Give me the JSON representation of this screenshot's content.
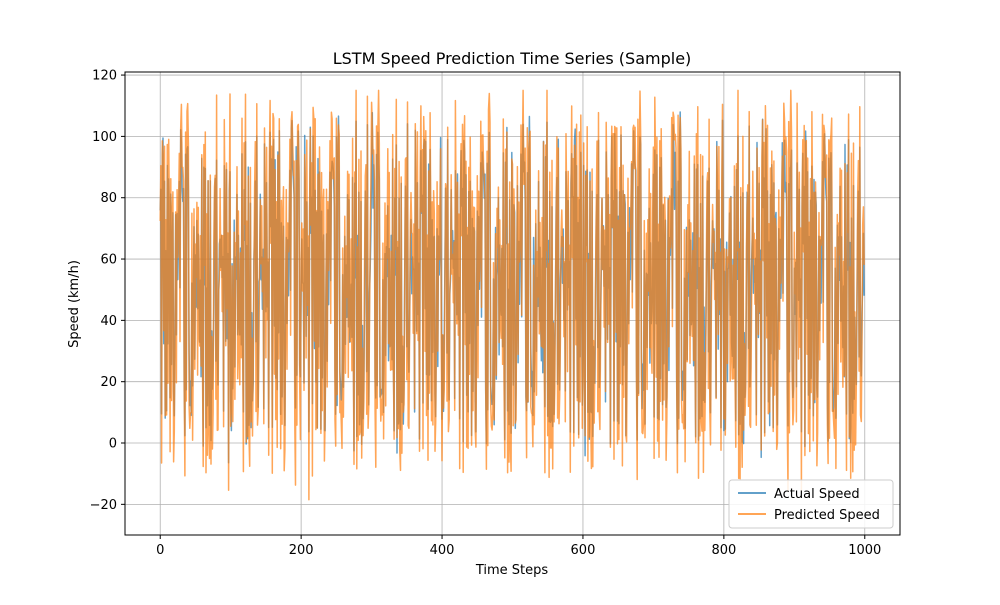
{
  "chart_data": {
    "type": "line",
    "title": "LSTM Speed Prediction Time Series (Sample)",
    "xlabel": "Time Steps",
    "ylabel": "Speed (km/h)",
    "xlim": [
      -50,
      1050
    ],
    "ylim": [
      -30,
      121
    ],
    "x_ticks": [
      0,
      200,
      400,
      600,
      800,
      1000
    ],
    "y_ticks": [
      -20,
      0,
      20,
      40,
      60,
      80,
      100,
      120
    ],
    "grid": true,
    "legend_position": "bottom-right",
    "series": [
      {
        "name": "Actual Speed",
        "color": "#1f77b4",
        "opacity": 0.7,
        "points": 1000,
        "values": [
          72,
          18,
          55,
          95,
          8,
          78,
          30,
          88,
          12,
          65,
          99,
          40,
          22,
          91,
          5,
          60,
          48,
          84,
          15,
          73,
          33,
          97,
          10,
          57,
          86,
          26,
          69,
          3,
          94,
          44,
          18,
          80,
          52,
          9,
          88,
          36,
          64,
          95,
          20,
          76,
          12,
          58,
          90,
          28,
          70,
          6,
          83,
          46,
          98,
          14,
          62,
          38,
          92,
          24,
          75,
          4,
          67,
          50,
          85,
          17,
          96,
          31,
          59,
          11,
          79,
          43,
          93,
          21,
          68,
          7,
          87,
          35,
          61,
          99,
          16,
          54,
          82,
          27,
          72,
          2,
          89,
          47,
          66,
          13,
          94,
          39,
          77,
          23,
          56,
          91,
          8,
          63,
          34,
          97,
          19,
          74,
          45,
          86,
          10,
          60
        ]
      },
      {
        "name": "Predicted Speed",
        "color": "#ff7f0e",
        "opacity": 0.7,
        "points": 1000,
        "values": [
          68,
          10,
          62,
          104,
          -2,
          85,
          24,
          96,
          4,
          70,
          107,
          34,
          14,
          98,
          -6,
          66,
          42,
          92,
          6,
          80,
          26,
          104,
          0,
          63,
          94,
          18,
          76,
          -4,
          101,
          38,
          10,
          88,
          58,
          -1,
          96,
          30,
          71,
          103,
          12,
          84,
          3,
          65,
          98,
          20,
          78,
          -8,
          91,
          40,
          110,
          5,
          69,
          32,
          100,
          16,
          83,
          -5,
          74,
          56,
          93,
          8,
          105,
          24,
          66,
          2,
          87,
          37,
          102,
          12,
          75,
          -3,
          95,
          28,
          68,
          108,
          7,
          61,
          90,
          19,
          80,
          -10,
          97,
          41,
          73,
          4,
          103,
          33,
          85,
          14,
          63,
          99,
          -2,
          70,
          27,
          106,
          10,
          82,
          39,
          94,
          0,
          66
        ]
      }
    ]
  }
}
